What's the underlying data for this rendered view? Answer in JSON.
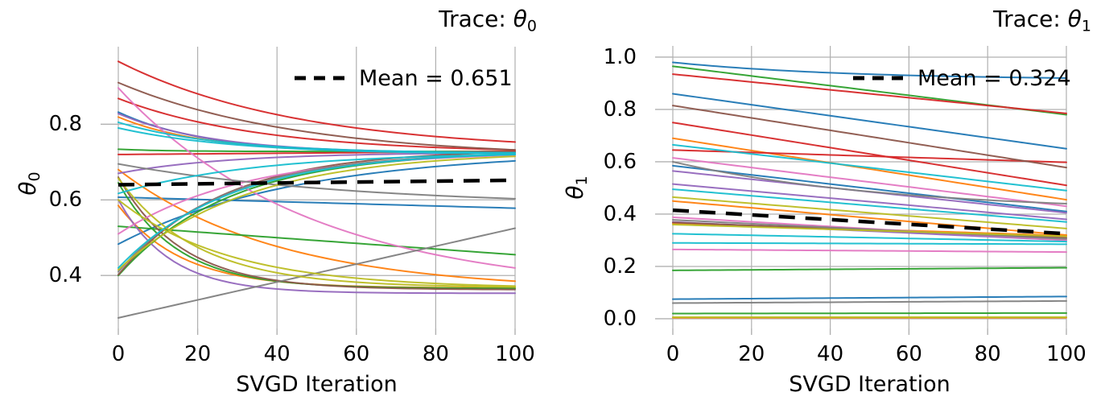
{
  "figure": {
    "description": "Two-panel SVGD particle trace figure",
    "background": "#ffffff",
    "grid_color": "#b0b0b0",
    "text_color": "#000000",
    "palette": {
      "blue": "#1f77b4",
      "orange": "#ff7f0e",
      "green": "#2ca02c",
      "red": "#d62728",
      "purple": "#9467bd",
      "brown": "#8c564b",
      "pink": "#e377c2",
      "gray": "#7f7f7f",
      "olive": "#bcbd22",
      "cyan": "#17becf"
    }
  },
  "chart_data": [
    {
      "type": "line",
      "title": {
        "prefix": "Trace: ",
        "symbol": "θ",
        "sub": "0"
      },
      "xlabel": "SVGD Iteration",
      "ylabel_symbol": "θ",
      "ylabel_sub": "0",
      "xlim": [
        0,
        100
      ],
      "ylim": [
        0.26,
        1.005
      ],
      "grid": true,
      "legend": {
        "label": "Mean = 0.651",
        "position": "upper right"
      },
      "xticks": {
        "labels": [
          "0",
          "20",
          "40",
          "60",
          "80",
          "100"
        ],
        "values": [
          0,
          20,
          40,
          60,
          80,
          100
        ]
      },
      "yticks": {
        "labels": [
          "0.4",
          "0.6",
          "0.8"
        ],
        "values": [
          0.4,
          0.6,
          0.8
        ]
      },
      "mean_trace": {
        "label": "Mean = 0.651",
        "y_start": 0.64,
        "y_end": 0.652,
        "color": "#000000",
        "style": "dashed"
      },
      "series": [
        {
          "color": "blue",
          "y0": 0.832,
          "y1": 0.725,
          "shape": "exp",
          "tau": 22
        },
        {
          "color": "blue",
          "y0": 0.607,
          "y1": 0.578,
          "shape": "lin"
        },
        {
          "color": "blue",
          "y0": 0.483,
          "y1": 0.703,
          "shape": "exp",
          "tau": 45
        },
        {
          "color": "orange",
          "y0": 0.819,
          "y1": 0.725,
          "shape": "exp",
          "tau": 22
        },
        {
          "color": "orange",
          "y0": 0.68,
          "y1": 0.385,
          "shape": "exp",
          "tau": 40
        },
        {
          "color": "orange",
          "y0": 0.585,
          "y1": 0.367,
          "shape": "exp",
          "tau": 16
        },
        {
          "color": "green",
          "y0": 0.734,
          "y1": 0.728,
          "shape": "exp",
          "tau": 12
        },
        {
          "color": "green",
          "y0": 0.645,
          "y1": 0.366,
          "shape": "exp",
          "tau": 15
        },
        {
          "color": "green",
          "y0": 0.4,
          "y1": 0.72,
          "shape": "exp",
          "tau": 28
        },
        {
          "color": "green",
          "y0": 0.53,
          "y1": 0.455,
          "shape": "lin"
        },
        {
          "color": "red",
          "y0": 0.966,
          "y1": 0.753,
          "shape": "exp",
          "tau": 45
        },
        {
          "color": "red",
          "y0": 0.868,
          "y1": 0.732,
          "shape": "exp",
          "tau": 36
        },
        {
          "color": "red",
          "y0": 0.72,
          "y1": 0.728,
          "shape": "lin"
        },
        {
          "color": "purple",
          "y0": 0.828,
          "y1": 0.724,
          "shape": "exp",
          "tau": 24
        },
        {
          "color": "purple",
          "y0": 0.67,
          "y1": 0.724,
          "shape": "exp",
          "tau": 28
        },
        {
          "color": "purple",
          "y0": 0.6,
          "y1": 0.353,
          "shape": "exp",
          "tau": 13
        },
        {
          "color": "brown",
          "y0": 0.91,
          "y1": 0.732,
          "shape": "exp",
          "tau": 45
        },
        {
          "color": "brown",
          "y0": 0.66,
          "y1": 0.363,
          "shape": "exp",
          "tau": 16
        },
        {
          "color": "brown",
          "y0": 0.402,
          "y1": 0.726,
          "shape": "exp",
          "tau": 26
        },
        {
          "color": "pink",
          "y0": 0.896,
          "y1": 0.42,
          "shape": "exp",
          "tau": 48
        },
        {
          "color": "pink",
          "y0": 0.51,
          "y1": 0.718,
          "shape": "exp",
          "tau": 32
        },
        {
          "color": "gray",
          "y0": 0.695,
          "y1": 0.603,
          "shape": "exp",
          "tau": 60
        },
        {
          "color": "gray",
          "y0": 0.288,
          "y1": 0.525,
          "shape": "lin"
        },
        {
          "color": "gray",
          "y0": 0.41,
          "y1": 0.72,
          "shape": "exp",
          "tau": 26
        },
        {
          "color": "olive",
          "y0": 0.657,
          "y1": 0.37,
          "shape": "exp",
          "tau": 20
        },
        {
          "color": "olive",
          "y0": 0.6,
          "y1": 0.372,
          "shape": "exp",
          "tau": 28
        },
        {
          "color": "olive",
          "y0": 0.415,
          "y1": 0.715,
          "shape": "exp",
          "tau": 32
        },
        {
          "color": "cyan",
          "y0": 0.805,
          "y1": 0.725,
          "shape": "exp",
          "tau": 26
        },
        {
          "color": "cyan",
          "y0": 0.79,
          "y1": 0.722,
          "shape": "exp",
          "tau": 30
        },
        {
          "color": "cyan",
          "y0": 0.617,
          "y1": 0.72,
          "shape": "exp",
          "tau": 35
        },
        {
          "color": "cyan",
          "y0": 0.42,
          "y1": 0.72,
          "shape": "exp",
          "tau": 28
        }
      ]
    },
    {
      "type": "line",
      "title": {
        "prefix": "Trace: ",
        "symbol": "θ",
        "sub": "1"
      },
      "xlabel": "SVGD Iteration",
      "ylabel_symbol": "θ",
      "ylabel_sub": "1",
      "xlim": [
        0,
        100
      ],
      "ylim": [
        -0.037,
        1.043
      ],
      "grid": true,
      "legend": {
        "label": "Mean = 0.324",
        "position": "upper right"
      },
      "xticks": {
        "labels": [
          "0",
          "20",
          "40",
          "60",
          "80",
          "100"
        ],
        "values": [
          0,
          20,
          40,
          60,
          80,
          100
        ]
      },
      "yticks": {
        "labels": [
          "0.0",
          "0.2",
          "0.4",
          "0.6",
          "0.8",
          "1.0"
        ],
        "values": [
          0.0,
          0.2,
          0.4,
          0.6,
          0.8,
          1.0
        ]
      },
      "mean_trace": {
        "label": "Mean = 0.324",
        "y_start": 0.415,
        "y_end": 0.325,
        "color": "#000000",
        "style": "dashed"
      },
      "series": [
        {
          "color": "blue",
          "y0": 0.98,
          "y1": 0.92,
          "shape": "exp",
          "tau": 45
        },
        {
          "color": "blue",
          "y0": 0.86,
          "y1": 0.65,
          "shape": "lin"
        },
        {
          "color": "blue",
          "y0": 0.585,
          "y1": 0.41,
          "shape": "lin"
        },
        {
          "color": "blue",
          "y0": 0.075,
          "y1": 0.085,
          "shape": "lin"
        },
        {
          "color": "orange",
          "y0": 0.69,
          "y1": 0.455,
          "shape": "lin"
        },
        {
          "color": "orange",
          "y0": 0.45,
          "y1": 0.32,
          "shape": "lin"
        },
        {
          "color": "orange",
          "y0": 0.365,
          "y1": 0.318,
          "shape": "lin"
        },
        {
          "color": "orange",
          "y0": 0.004,
          "y1": 0.004,
          "shape": "lin"
        },
        {
          "color": "green",
          "y0": 0.965,
          "y1": 0.78,
          "shape": "lin"
        },
        {
          "color": "green",
          "y0": 0.185,
          "y1": 0.195,
          "shape": "lin"
        },
        {
          "color": "green",
          "y0": 0.02,
          "y1": 0.022,
          "shape": "lin"
        },
        {
          "color": "red",
          "y0": 0.935,
          "y1": 0.785,
          "shape": "lin"
        },
        {
          "color": "red",
          "y0": 0.75,
          "y1": 0.51,
          "shape": "lin"
        },
        {
          "color": "red",
          "y0": 0.645,
          "y1": 0.598,
          "shape": "lin"
        },
        {
          "color": "purple",
          "y0": 0.565,
          "y1": 0.405,
          "shape": "lin"
        },
        {
          "color": "purple",
          "y0": 0.515,
          "y1": 0.38,
          "shape": "lin"
        },
        {
          "color": "purple",
          "y0": 0.37,
          "y1": 0.3,
          "shape": "lin"
        },
        {
          "color": "brown",
          "y0": 0.815,
          "y1": 0.578,
          "shape": "lin"
        },
        {
          "color": "brown",
          "y0": 0.368,
          "y1": 0.31,
          "shape": "lin"
        },
        {
          "color": "pink",
          "y0": 0.615,
          "y1": 0.43,
          "shape": "lin"
        },
        {
          "color": "pink",
          "y0": 0.388,
          "y1": 0.3,
          "shape": "lin"
        },
        {
          "color": "pink",
          "y0": 0.265,
          "y1": 0.255,
          "shape": "lin"
        },
        {
          "color": "gray",
          "y0": 0.6,
          "y1": 0.44,
          "shape": "exp",
          "tau": 55
        },
        {
          "color": "gray",
          "y0": 0.378,
          "y1": 0.305,
          "shape": "lin"
        },
        {
          "color": "gray",
          "y0": 0.06,
          "y1": 0.068,
          "shape": "lin"
        },
        {
          "color": "olive",
          "y0": 0.465,
          "y1": 0.345,
          "shape": "lin"
        },
        {
          "color": "olive",
          "y0": 0.36,
          "y1": 0.315,
          "shape": "lin"
        },
        {
          "color": "olive",
          "y0": 0.006,
          "y1": 0.006,
          "shape": "lin"
        },
        {
          "color": "cyan",
          "y0": 0.665,
          "y1": 0.49,
          "shape": "lin"
        },
        {
          "color": "cyan",
          "y0": 0.495,
          "y1": 0.37,
          "shape": "lin"
        },
        {
          "color": "cyan",
          "y0": 0.325,
          "y1": 0.295,
          "shape": "lin"
        },
        {
          "color": "cyan",
          "y0": 0.29,
          "y1": 0.285,
          "shape": "lin"
        }
      ]
    }
  ]
}
